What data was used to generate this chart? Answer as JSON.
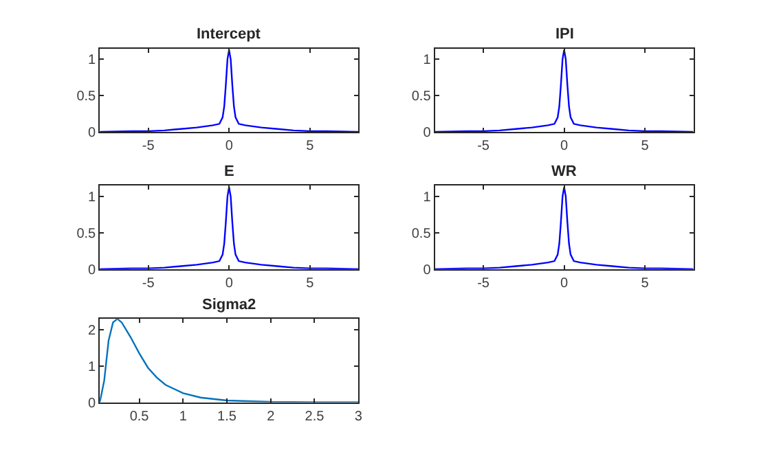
{
  "chart_data": [
    {
      "type": "line",
      "title": "Intercept",
      "x": [
        -8,
        -6,
        -5,
        -4,
        -3,
        -2,
        -1,
        -0.6,
        -0.4,
        -0.3,
        -0.2,
        -0.1,
        0,
        0.1,
        0.2,
        0.3,
        0.4,
        0.6,
        1,
        2,
        3,
        4,
        5,
        6,
        8
      ],
      "series": [
        {
          "color": "#0000ff",
          "values": [
            0,
            0.01,
            0.01,
            0.02,
            0.04,
            0.06,
            0.09,
            0.11,
            0.2,
            0.35,
            0.65,
            1.0,
            1.13,
            1.0,
            0.65,
            0.35,
            0.2,
            0.11,
            0.09,
            0.06,
            0.04,
            0.02,
            0.01,
            0.01,
            0
          ]
        }
      ],
      "xlim": [
        -8,
        8
      ],
      "xticks": [
        -5,
        0,
        5
      ],
      "ylim": [
        0,
        1.15
      ],
      "yticks": [
        0,
        0.5,
        1
      ]
    },
    {
      "type": "line",
      "title": "IPI",
      "x": [
        -8,
        -6,
        -5,
        -4,
        -3,
        -2,
        -1,
        -0.6,
        -0.4,
        -0.3,
        -0.2,
        -0.1,
        0,
        0.1,
        0.2,
        0.3,
        0.4,
        0.6,
        1,
        2,
        3,
        4,
        5,
        6,
        8
      ],
      "series": [
        {
          "color": "#0000ff",
          "values": [
            0,
            0.01,
            0.01,
            0.02,
            0.04,
            0.06,
            0.09,
            0.11,
            0.2,
            0.35,
            0.65,
            1.0,
            1.13,
            1.0,
            0.65,
            0.35,
            0.2,
            0.11,
            0.09,
            0.06,
            0.04,
            0.02,
            0.01,
            0.01,
            0
          ]
        }
      ],
      "xlim": [
        -8,
        8
      ],
      "xticks": [
        -5,
        0,
        5
      ],
      "ylim": [
        0,
        1.15
      ],
      "yticks": [
        0,
        0.5,
        1
      ]
    },
    {
      "type": "line",
      "title": "E",
      "x": [
        -8,
        -6,
        -5,
        -4,
        -3,
        -2,
        -1,
        -0.6,
        -0.4,
        -0.3,
        -0.2,
        -0.1,
        0,
        0.1,
        0.2,
        0.3,
        0.4,
        0.6,
        1,
        2,
        3,
        4,
        5,
        6,
        8
      ],
      "series": [
        {
          "color": "#0000ff",
          "values": [
            0,
            0.01,
            0.01,
            0.02,
            0.04,
            0.06,
            0.09,
            0.11,
            0.2,
            0.35,
            0.65,
            1.0,
            1.13,
            1.0,
            0.65,
            0.35,
            0.2,
            0.11,
            0.09,
            0.06,
            0.04,
            0.02,
            0.01,
            0.01,
            0
          ]
        }
      ],
      "xlim": [
        -8,
        8
      ],
      "xticks": [
        -5,
        0,
        5
      ],
      "ylim": [
        0,
        1.15
      ],
      "yticks": [
        0,
        0.5,
        1
      ]
    },
    {
      "type": "line",
      "title": "WR",
      "x": [
        -8,
        -6,
        -5,
        -4,
        -3,
        -2,
        -1,
        -0.6,
        -0.4,
        -0.3,
        -0.2,
        -0.1,
        0,
        0.1,
        0.2,
        0.3,
        0.4,
        0.6,
        1,
        2,
        3,
        4,
        5,
        6,
        8
      ],
      "series": [
        {
          "color": "#0000ff",
          "values": [
            0,
            0.01,
            0.01,
            0.02,
            0.04,
            0.06,
            0.09,
            0.11,
            0.2,
            0.35,
            0.65,
            1.0,
            1.13,
            1.0,
            0.65,
            0.35,
            0.2,
            0.11,
            0.09,
            0.06,
            0.04,
            0.02,
            0.01,
            0.01,
            0
          ]
        }
      ],
      "xlim": [
        -8,
        8
      ],
      "xticks": [
        -5,
        0,
        5
      ],
      "ylim": [
        0,
        1.15
      ],
      "yticks": [
        0,
        0.5,
        1
      ]
    },
    {
      "type": "line",
      "title": "Sigma2",
      "x": [
        0.05,
        0.1,
        0.15,
        0.2,
        0.25,
        0.3,
        0.4,
        0.5,
        0.6,
        0.7,
        0.8,
        1.0,
        1.2,
        1.5,
        2,
        2.5,
        3
      ],
      "series": [
        {
          "color": "#0072bd",
          "values": [
            0,
            0.6,
            1.7,
            2.2,
            2.3,
            2.2,
            1.8,
            1.35,
            0.95,
            0.68,
            0.48,
            0.25,
            0.13,
            0.05,
            0.01,
            0,
            0
          ]
        }
      ],
      "xlim": [
        0.05,
        3
      ],
      "xticks": [
        0.5,
        1,
        1.5,
        2,
        2.5,
        3
      ],
      "ylim": [
        0,
        2.3
      ],
      "yticks": [
        0,
        1,
        2
      ]
    }
  ]
}
